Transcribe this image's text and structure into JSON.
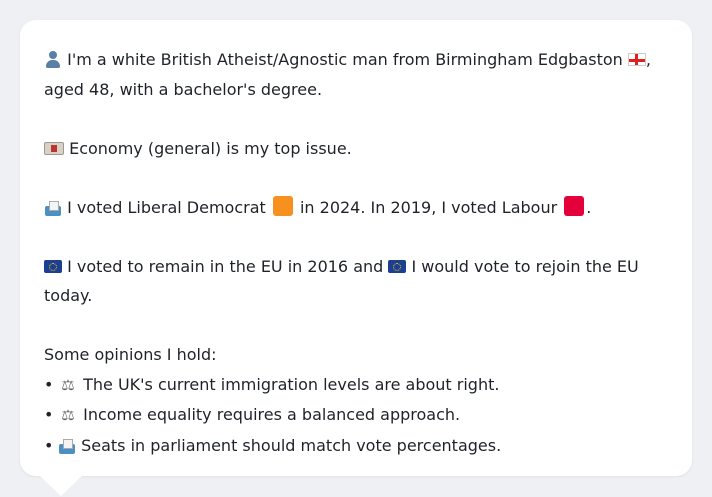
{
  "profile": {
    "line1": "I'm a white British Atheist/Agnostic man from Birmingham Edgbaston",
    "line1_end": ",",
    "line2": "aged 48, with a bachelor's degree.",
    "issue": "Economy (general) is my top issue.",
    "vote_a": "I voted Liberal Democrat",
    "vote_b": "in 2024. In 2019, I voted Labour",
    "vote_end": ".",
    "eu_a": "I voted to remain in the EU in 2016 and",
    "eu_b": "I would vote to rejoin the EU",
    "eu_c": "today.",
    "opinions_heading": "Some opinions I hold:",
    "opinions": [
      "The UK's current immigration levels are about right.",
      "Income equality requires a balanced approach.",
      "Seats in parliament should match vote percentages."
    ],
    "bullet": "•"
  },
  "colors": {
    "libdem": "#f7901e",
    "labour": "#e4003b"
  }
}
